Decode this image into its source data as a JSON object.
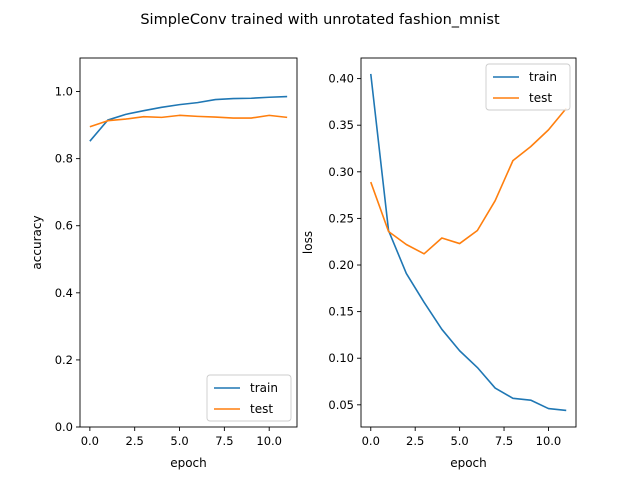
{
  "figure": {
    "suptitle": "SimpleConv trained with unrotated fashion_mnist"
  },
  "chart_data": [
    {
      "type": "line",
      "xlabel": "epoch",
      "ylabel": "accuracy",
      "xlim": [
        -0.55,
        11.55
      ],
      "ylim": [
        0,
        1.1
      ],
      "xticks": [
        0.0,
        2.5,
        5.0,
        7.5,
        10.0
      ],
      "xtick_labels": [
        "0.0",
        "2.5",
        "5.0",
        "7.5",
        "10.0"
      ],
      "yticks": [
        0.0,
        0.2,
        0.4,
        0.6,
        0.8,
        1.0
      ],
      "ytick_labels": [
        "0.0",
        "0.2",
        "0.4",
        "0.6",
        "0.8",
        "1.0"
      ],
      "legend_position": "lower-right",
      "x": [
        0,
        1,
        2,
        3,
        4,
        5,
        6,
        7,
        8,
        9,
        10,
        11
      ],
      "series": [
        {
          "name": "train",
          "color": "#1f77b4",
          "values": [
            0.852,
            0.915,
            0.932,
            0.943,
            0.953,
            0.961,
            0.967,
            0.976,
            0.979,
            0.98,
            0.983,
            0.985
          ]
        },
        {
          "name": "test",
          "color": "#ff7f0e",
          "values": [
            0.895,
            0.913,
            0.918,
            0.925,
            0.923,
            0.929,
            0.926,
            0.924,
            0.921,
            0.921,
            0.929,
            0.923
          ]
        }
      ]
    },
    {
      "type": "line",
      "xlabel": "epoch",
      "ylabel": "loss",
      "xlim": [
        -0.55,
        11.55
      ],
      "ylim": [
        0.0262,
        0.4221
      ],
      "xticks": [
        0.0,
        2.5,
        5.0,
        7.5,
        10.0
      ],
      "xtick_labels": [
        "0.0",
        "2.5",
        "5.0",
        "7.5",
        "10.0"
      ],
      "yticks": [
        0.05,
        0.1,
        0.15,
        0.2,
        0.25,
        0.3,
        0.35,
        0.4
      ],
      "ytick_labels": [
        "0.05",
        "0.10",
        "0.15",
        "0.20",
        "0.25",
        "0.30",
        "0.35",
        "0.40"
      ],
      "legend_position": "upper-right",
      "x": [
        0,
        1,
        2,
        3,
        4,
        5,
        6,
        7,
        8,
        9,
        10,
        11
      ],
      "series": [
        {
          "name": "train",
          "color": "#1f77b4",
          "values": [
            0.405,
            0.237,
            0.191,
            0.16,
            0.131,
            0.108,
            0.09,
            0.068,
            0.057,
            0.055,
            0.046,
            0.044
          ]
        },
        {
          "name": "test",
          "color": "#ff7f0e",
          "values": [
            0.289,
            0.236,
            0.222,
            0.212,
            0.229,
            0.223,
            0.237,
            0.269,
            0.312,
            0.327,
            0.345,
            0.368
          ]
        }
      ]
    }
  ]
}
